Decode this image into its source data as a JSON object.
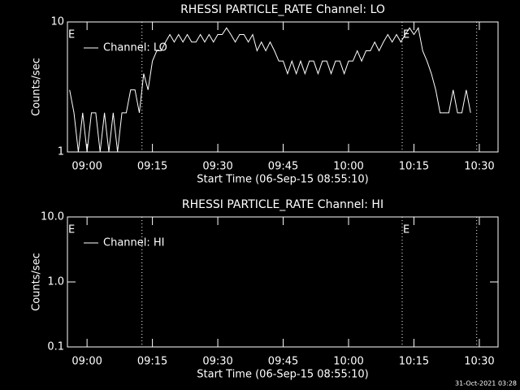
{
  "chart_data": [
    {
      "type": "line",
      "title": "RHESSI PARTICLE_RATE Channel: LO",
      "xlabel": "Start Time (06-Sep-15 08:55:10)",
      "ylabel": "Counts/sec",
      "log_y": true,
      "color": "#ffffff",
      "xlim": [
        535.5,
        634.3
      ],
      "ylim": [
        1,
        10
      ],
      "xticks": [
        {
          "value": 540,
          "label": "09:00"
        },
        {
          "value": 555,
          "label": "09:15"
        },
        {
          "value": 570,
          "label": "09:30"
        },
        {
          "value": 585,
          "label": "09:45"
        },
        {
          "value": 600,
          "label": "10:00"
        },
        {
          "value": 615,
          "label": "10:15"
        },
        {
          "value": 630,
          "label": "10:30"
        }
      ],
      "yticks": [
        1,
        10
      ],
      "event_lines": [
        552.6,
        612.3,
        629.4
      ],
      "annotations": [
        {
          "text": "E",
          "x": 535.5
        },
        {
          "text": "E",
          "x": 612.3
        }
      ],
      "legend": "top-left",
      "x": [
        536,
        537,
        538,
        539,
        540,
        541,
        542,
        543,
        544,
        545,
        546,
        547,
        548,
        549,
        550,
        551,
        552,
        553,
        554,
        555,
        556,
        557,
        558,
        559,
        560,
        561,
        562,
        563,
        564,
        565,
        566,
        567,
        568,
        569,
        570,
        571,
        572,
        573,
        574,
        575,
        576,
        577,
        578,
        579,
        580,
        581,
        582,
        583,
        584,
        585,
        586,
        587,
        588,
        589,
        590,
        591,
        592,
        593,
        594,
        595,
        596,
        597,
        598,
        599,
        600,
        601,
        602,
        603,
        604,
        605,
        606,
        607,
        608,
        609,
        610,
        611,
        612,
        613,
        614,
        615,
        616,
        617,
        618,
        619,
        620,
        621,
        622,
        623,
        624,
        625,
        626,
        627,
        628
      ],
      "series": [
        {
          "name": "Channel: LO",
          "color": "#ffffff",
          "values": [
            3,
            2,
            1,
            2,
            1,
            2,
            2,
            1,
            2,
            1,
            2,
            1,
            2,
            2,
            3,
            3,
            2,
            4,
            3,
            5,
            6,
            6,
            7,
            8,
            7,
            8,
            7,
            8,
            7,
            7,
            8,
            7,
            8,
            7,
            8,
            8,
            9,
            8,
            7,
            8,
            8,
            7,
            8,
            6,
            7,
            6,
            7,
            6,
            5,
            5,
            4,
            5,
            4,
            5,
            4,
            5,
            5,
            4,
            5,
            5,
            4,
            5,
            5,
            4,
            5,
            5,
            6,
            5,
            6,
            6,
            7,
            6,
            7,
            8,
            7,
            8,
            7,
            8,
            9,
            8,
            9,
            6,
            5,
            4,
            3,
            2,
            2,
            2,
            3,
            2,
            2,
            3,
            2
          ]
        }
      ]
    },
    {
      "type": "line",
      "title": "RHESSI PARTICLE_RATE Channel: HI",
      "xlabel": "Start Time (06-Sep-15 08:55:10)",
      "ylabel": "Counts/sec",
      "log_y": true,
      "color": "#ffffff",
      "xlim": [
        535.5,
        634.3
      ],
      "ylim": [
        0.1,
        10
      ],
      "xticks": [
        {
          "value": 540,
          "label": "09:00"
        },
        {
          "value": 555,
          "label": "09:15"
        },
        {
          "value": 570,
          "label": "09:30"
        },
        {
          "value": 585,
          "label": "09:45"
        },
        {
          "value": 600,
          "label": "10:00"
        },
        {
          "value": 615,
          "label": "10:15"
        },
        {
          "value": 630,
          "label": "10:30"
        }
      ],
      "yticks": [
        0.1,
        {
          "value": 1,
          "label": "1.0"
        },
        {
          "value": 10,
          "label": "10.0"
        }
      ],
      "event_lines": [
        552.6,
        612.3,
        629.4
      ],
      "annotations": [
        {
          "text": "E",
          "x": 535.5
        },
        {
          "text": "E",
          "x": 612.3
        }
      ],
      "legend": "top-left",
      "x": [],
      "series": [
        {
          "name": "Channel: HI",
          "color": "#ffffff",
          "values": []
        }
      ]
    }
  ],
  "footer": "31-Oct-2021 03:28"
}
